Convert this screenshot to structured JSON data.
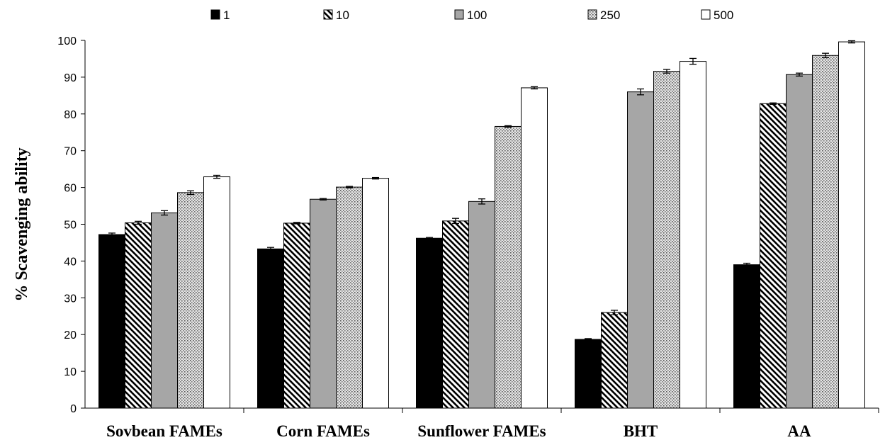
{
  "chart_data": {
    "type": "bar",
    "title": "",
    "xlabel": "",
    "ylabel": "% Scavenging ability",
    "ylim": [
      0,
      100
    ],
    "yticks": [
      "0",
      "10",
      "20",
      "30",
      "40",
      "50",
      "60",
      "70",
      "80",
      "90",
      "100"
    ],
    "grid": false,
    "legend_position": "top",
    "categories": [
      "Sovbean FAMEs",
      "Corn FAMEs",
      "Sunflower FAMEs",
      "BHT",
      "AA"
    ],
    "series": [
      {
        "name": "1",
        "pattern": "solid-black",
        "values": [
          47.2,
          43.3,
          46.2,
          18.7,
          39.0
        ],
        "errors": [
          0.4,
          0.4,
          0.2,
          0.2,
          0.4
        ]
      },
      {
        "name": "10",
        "pattern": "diagonal-hatch",
        "values": [
          50.4,
          50.3,
          50.9,
          26.0,
          82.8
        ],
        "errors": [
          0.4,
          0.2,
          0.7,
          0.6,
          0.2
        ]
      },
      {
        "name": "100",
        "pattern": "solid-gray",
        "values": [
          53.1,
          56.8,
          56.2,
          86.0,
          90.7
        ],
        "errors": [
          0.6,
          0.2,
          0.7,
          0.8,
          0.4
        ]
      },
      {
        "name": "250",
        "pattern": "dotted",
        "values": [
          58.6,
          60.1,
          76.6,
          91.6,
          95.9
        ],
        "errors": [
          0.5,
          0.2,
          0.2,
          0.5,
          0.6
        ]
      },
      {
        "name": "500",
        "pattern": "solid-white",
        "values": [
          62.9,
          62.5,
          87.1,
          94.3,
          99.6
        ],
        "errors": [
          0.4,
          0.2,
          0.3,
          0.8,
          0.3
        ]
      }
    ]
  }
}
